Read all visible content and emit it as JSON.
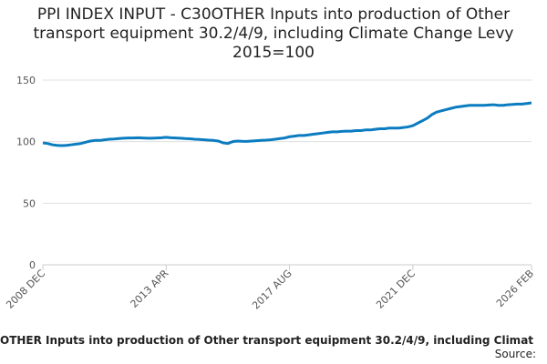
{
  "chart_data": {
    "type": "line",
    "title": "PPI INDEX INPUT - C30OTHER Inputs into production of Other transport equipment 30.2/4/9, including Climate Change Levy 2015=100",
    "categories": [
      "2008 DEC",
      null,
      null,
      null,
      null,
      null,
      null,
      null,
      null,
      null,
      null,
      null,
      null,
      null,
      null,
      null,
      null,
      null,
      null,
      null,
      null,
      null,
      null,
      null,
      null,
      null,
      "2013 APR",
      null,
      null,
      null,
      null,
      null,
      null,
      null,
      null,
      null,
      null,
      null,
      null,
      null,
      null,
      null,
      null,
      null,
      null,
      null,
      null,
      null,
      null,
      null,
      null,
      null,
      "2017 AUG",
      null,
      null,
      null,
      null,
      null,
      null,
      null,
      null,
      null,
      null,
      null,
      null,
      null,
      null,
      null,
      null,
      null,
      null,
      null,
      null,
      null,
      null,
      null,
      null,
      null,
      "2021 DEC",
      null,
      null,
      null,
      null,
      null,
      null,
      null,
      null,
      null,
      null,
      null,
      null,
      null,
      null,
      null,
      null,
      null,
      null,
      null,
      null,
      null,
      null,
      null,
      null,
      "2026 FEB"
    ],
    "series": [
      {
        "name": "OTHER Inputs into production of Other transport equipment 30.2/4/9, including Climat",
        "color": "#0b7cc0",
        "values": [
          99,
          98.5,
          97.5,
          97,
          96.8,
          97,
          97.5,
          98,
          98.5,
          99.5,
          100.5,
          101,
          101,
          101.5,
          102,
          102.2,
          102.5,
          102.8,
          103,
          103,
          103.2,
          103,
          102.8,
          102.8,
          103,
          103.2,
          103.5,
          103.2,
          103,
          102.8,
          102.5,
          102.3,
          102,
          101.8,
          101.5,
          101.2,
          101,
          100.5,
          99,
          98.5,
          100,
          100.5,
          100.3,
          100.2,
          100.5,
          100.8,
          101,
          101.2,
          101.5,
          102,
          102.5,
          103,
          104,
          104.5,
          105,
          105,
          105.5,
          106,
          106.5,
          107,
          107.5,
          108,
          108,
          108.3,
          108.5,
          108.5,
          109,
          109,
          109.5,
          109.5,
          110,
          110.5,
          110.5,
          111,
          111,
          111,
          111.5,
          112,
          113,
          115,
          117,
          119,
          122,
          124,
          125,
          126,
          127,
          128,
          128.5,
          129,
          129.5,
          129.5,
          129.5,
          129.5,
          129.8,
          130,
          129.5,
          129.5,
          130,
          130.2,
          130.5,
          130.5,
          131,
          131.5
        ]
      }
    ],
    "ylim": [
      0,
      150
    ],
    "yticks": [
      0,
      50,
      100,
      150
    ],
    "grid": true,
    "source_label": "Source:"
  }
}
